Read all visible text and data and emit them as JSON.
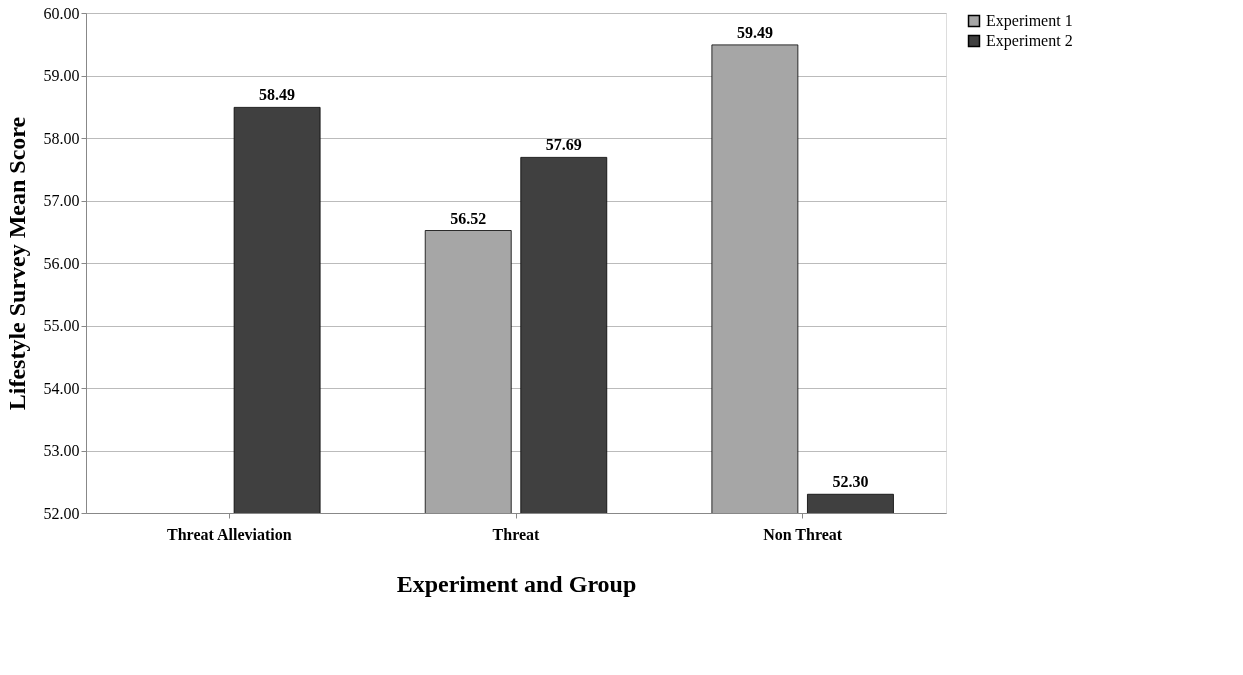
{
  "chart_data": {
    "type": "bar",
    "xlabel": "Experiment and Group",
    "ylabel": "Lifestyle Survey Mean Score",
    "categories": [
      "Threat Alleviation",
      "Threat",
      "Non Threat"
    ],
    "series": [
      {
        "name": "Experiment 1",
        "color": "#a6a6a6",
        "values": [
          null,
          56.52,
          59.49
        ],
        "value_labels": [
          null,
          "56.52",
          "59.49"
        ]
      },
      {
        "name": "Experiment 2",
        "color": "#404040",
        "values": [
          58.49,
          57.69,
          52.3
        ],
        "value_labels": [
          "58.49",
          "57.69",
          "52.30"
        ]
      }
    ],
    "ylim": [
      52,
      60
    ],
    "yticks": [
      {
        "value": 52,
        "label": "52.00"
      },
      {
        "value": 53,
        "label": "53.00"
      },
      {
        "value": 54,
        "label": "54.00"
      },
      {
        "value": 55,
        "label": "55.00"
      },
      {
        "value": 56,
        "label": "56.00"
      },
      {
        "value": 57,
        "label": "57.00"
      },
      {
        "value": 58,
        "label": "58.00"
      },
      {
        "value": 59,
        "label": "59.00"
      },
      {
        "value": 60,
        "label": "60.00"
      }
    ],
    "grid": "y",
    "legend": "right"
  }
}
